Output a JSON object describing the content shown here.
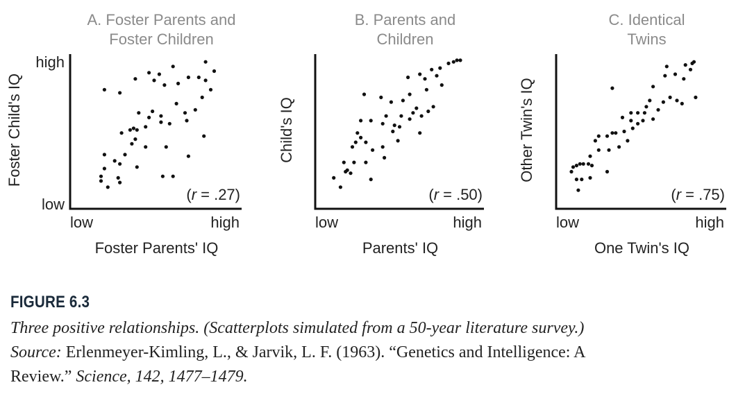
{
  "chart_data": [
    {
      "type": "scatter",
      "title_lines": [
        "A. Foster Parents and",
        "Foster Children"
      ],
      "xlabel": "Foster Parents' IQ",
      "ylabel": "Foster Child's IQ",
      "x_low": "low",
      "x_high": "high",
      "y_low": "low",
      "y_high": "high",
      "annotation": {
        "prefix": "(",
        "var": "r",
        "suffix": " = .27)"
      },
      "xlim": [
        0,
        1
      ],
      "ylim": [
        0,
        1
      ],
      "points": [
        [
          0.79,
          0.95
        ],
        [
          0.84,
          0.89
        ],
        [
          0.6,
          0.92
        ],
        [
          0.52,
          0.87
        ],
        [
          0.46,
          0.88
        ],
        [
          0.49,
          0.83
        ],
        [
          0.38,
          0.84
        ],
        [
          0.29,
          0.75
        ],
        [
          0.2,
          0.77
        ],
        [
          0.55,
          0.8
        ],
        [
          0.63,
          0.81
        ],
        [
          0.69,
          0.85
        ],
        [
          0.75,
          0.85
        ],
        [
          0.79,
          0.83
        ],
        [
          0.82,
          0.77
        ],
        [
          0.77,
          0.72
        ],
        [
          0.62,
          0.68
        ],
        [
          0.73,
          0.64
        ],
        [
          0.67,
          0.62
        ],
        [
          0.68,
          0.57
        ],
        [
          0.53,
          0.6
        ],
        [
          0.48,
          0.63
        ],
        [
          0.53,
          0.56
        ],
        [
          0.58,
          0.55
        ],
        [
          0.46,
          0.59
        ],
        [
          0.4,
          0.62
        ],
        [
          0.44,
          0.53
        ],
        [
          0.39,
          0.51
        ],
        [
          0.37,
          0.52
        ],
        [
          0.35,
          0.51
        ],
        [
          0.3,
          0.49
        ],
        [
          0.38,
          0.45
        ],
        [
          0.36,
          0.42
        ],
        [
          0.44,
          0.4
        ],
        [
          0.56,
          0.4
        ],
        [
          0.78,
          0.47
        ],
        [
          0.69,
          0.34
        ],
        [
          0.32,
          0.35
        ],
        [
          0.29,
          0.29
        ],
        [
          0.26,
          0.31
        ],
        [
          0.2,
          0.35
        ],
        [
          0.2,
          0.26
        ],
        [
          0.28,
          0.2
        ],
        [
          0.29,
          0.17
        ],
        [
          0.39,
          0.27
        ],
        [
          0.54,
          0.21
        ],
        [
          0.6,
          0.21
        ],
        [
          0.18,
          0.21
        ],
        [
          0.18,
          0.18
        ],
        [
          0.22,
          0.14
        ]
      ]
    },
    {
      "type": "scatter",
      "title_lines": [
        "B. Parents and",
        "Children"
      ],
      "xlabel": "Parents' IQ",
      "ylabel": "Child's IQ",
      "x_low": "low",
      "x_high": "high",
      "y_low": "",
      "y_high": "",
      "annotation": {
        "prefix": "(",
        "var": "r",
        "suffix": " = .50)"
      },
      "xlim": [
        0,
        1
      ],
      "ylim": [
        0,
        1
      ],
      "points": [
        [
          0.82,
          0.95
        ],
        [
          0.84,
          0.96
        ],
        [
          0.86,
          0.96
        ],
        [
          0.79,
          0.94
        ],
        [
          0.74,
          0.91
        ],
        [
          0.69,
          0.9
        ],
        [
          0.62,
          0.87
        ],
        [
          0.55,
          0.85
        ],
        [
          0.65,
          0.84
        ],
        [
          0.72,
          0.86
        ],
        [
          0.75,
          0.8
        ],
        [
          0.66,
          0.77
        ],
        [
          0.56,
          0.74
        ],
        [
          0.52,
          0.7
        ],
        [
          0.45,
          0.69
        ],
        [
          0.39,
          0.72
        ],
        [
          0.29,
          0.74
        ],
        [
          0.58,
          0.62
        ],
        [
          0.6,
          0.65
        ],
        [
          0.63,
          0.6
        ],
        [
          0.67,
          0.63
        ],
        [
          0.7,
          0.66
        ],
        [
          0.56,
          0.58
        ],
        [
          0.51,
          0.6
        ],
        [
          0.42,
          0.6
        ],
        [
          0.4,
          0.55
        ],
        [
          0.33,
          0.57
        ],
        [
          0.27,
          0.57
        ],
        [
          0.5,
          0.53
        ],
        [
          0.47,
          0.54
        ],
        [
          0.46,
          0.5
        ],
        [
          0.62,
          0.49
        ],
        [
          0.25,
          0.49
        ],
        [
          0.27,
          0.46
        ],
        [
          0.3,
          0.43
        ],
        [
          0.24,
          0.43
        ],
        [
          0.22,
          0.4
        ],
        [
          0.4,
          0.4
        ],
        [
          0.49,
          0.44
        ],
        [
          0.34,
          0.38
        ],
        [
          0.41,
          0.33
        ],
        [
          0.3,
          0.3
        ],
        [
          0.23,
          0.3
        ],
        [
          0.17,
          0.3
        ],
        [
          0.19,
          0.25
        ],
        [
          0.18,
          0.24
        ],
        [
          0.21,
          0.23
        ],
        [
          0.11,
          0.2
        ],
        [
          0.15,
          0.14
        ],
        [
          0.33,
          0.19
        ]
      ]
    },
    {
      "type": "scatter",
      "title_lines": [
        "C. Identical",
        "Twins"
      ],
      "xlabel": "One Twin's IQ",
      "ylabel": "Other Twin's IQ",
      "x_low": "low",
      "x_high": "high",
      "y_low": "",
      "y_high": "",
      "annotation": {
        "prefix": "(",
        "var": "r",
        "suffix": " = .75)"
      },
      "xlim": [
        0,
        1
      ],
      "ylim": [
        0,
        1
      ],
      "points": [
        [
          0.81,
          0.95
        ],
        [
          0.8,
          0.94
        ],
        [
          0.76,
          0.93
        ],
        [
          0.79,
          0.9
        ],
        [
          0.65,
          0.92
        ],
        [
          0.7,
          0.87
        ],
        [
          0.75,
          0.84
        ],
        [
          0.64,
          0.86
        ],
        [
          0.57,
          0.79
        ],
        [
          0.33,
          0.78
        ],
        [
          0.82,
          0.72
        ],
        [
          0.71,
          0.7
        ],
        [
          0.67,
          0.72
        ],
        [
          0.74,
          0.68
        ],
        [
          0.63,
          0.69
        ],
        [
          0.6,
          0.64
        ],
        [
          0.55,
          0.7
        ],
        [
          0.53,
          0.66
        ],
        [
          0.52,
          0.62
        ],
        [
          0.48,
          0.62
        ],
        [
          0.44,
          0.62
        ],
        [
          0.44,
          0.57
        ],
        [
          0.39,
          0.59
        ],
        [
          0.48,
          0.55
        ],
        [
          0.51,
          0.57
        ],
        [
          0.57,
          0.58
        ],
        [
          0.45,
          0.52
        ],
        [
          0.4,
          0.5
        ],
        [
          0.35,
          0.49
        ],
        [
          0.33,
          0.49
        ],
        [
          0.3,
          0.47
        ],
        [
          0.25,
          0.47
        ],
        [
          0.23,
          0.44
        ],
        [
          0.42,
          0.44
        ],
        [
          0.37,
          0.4
        ],
        [
          0.31,
          0.38
        ],
        [
          0.25,
          0.38
        ],
        [
          0.2,
          0.34
        ],
        [
          0.19,
          0.29
        ],
        [
          0.16,
          0.29
        ],
        [
          0.14,
          0.29
        ],
        [
          0.12,
          0.28
        ],
        [
          0.1,
          0.27
        ],
        [
          0.21,
          0.28
        ],
        [
          0.09,
          0.24
        ],
        [
          0.12,
          0.19
        ],
        [
          0.15,
          0.19
        ],
        [
          0.2,
          0.2
        ],
        [
          0.3,
          0.24
        ],
        [
          0.13,
          0.12
        ]
      ]
    }
  ],
  "figure": {
    "label": "FIGURE 6.3",
    "line1": "Three positive relationships. (Scatterplots simulated from a 50-year literature survey.)",
    "line2_source": "Source: ",
    "line2_rest": "Erlenmeyer-Kimling, L., & Jarvik, L. F. (1963). “Genetics and Intelligence: A",
    "line3_start": "Review.” ",
    "line3_rest": "Science, 142, 1477–1479."
  },
  "colors": {
    "title": "#8a8a8a",
    "text": "#222222",
    "axis": "#111111",
    "point": "#111111"
  }
}
